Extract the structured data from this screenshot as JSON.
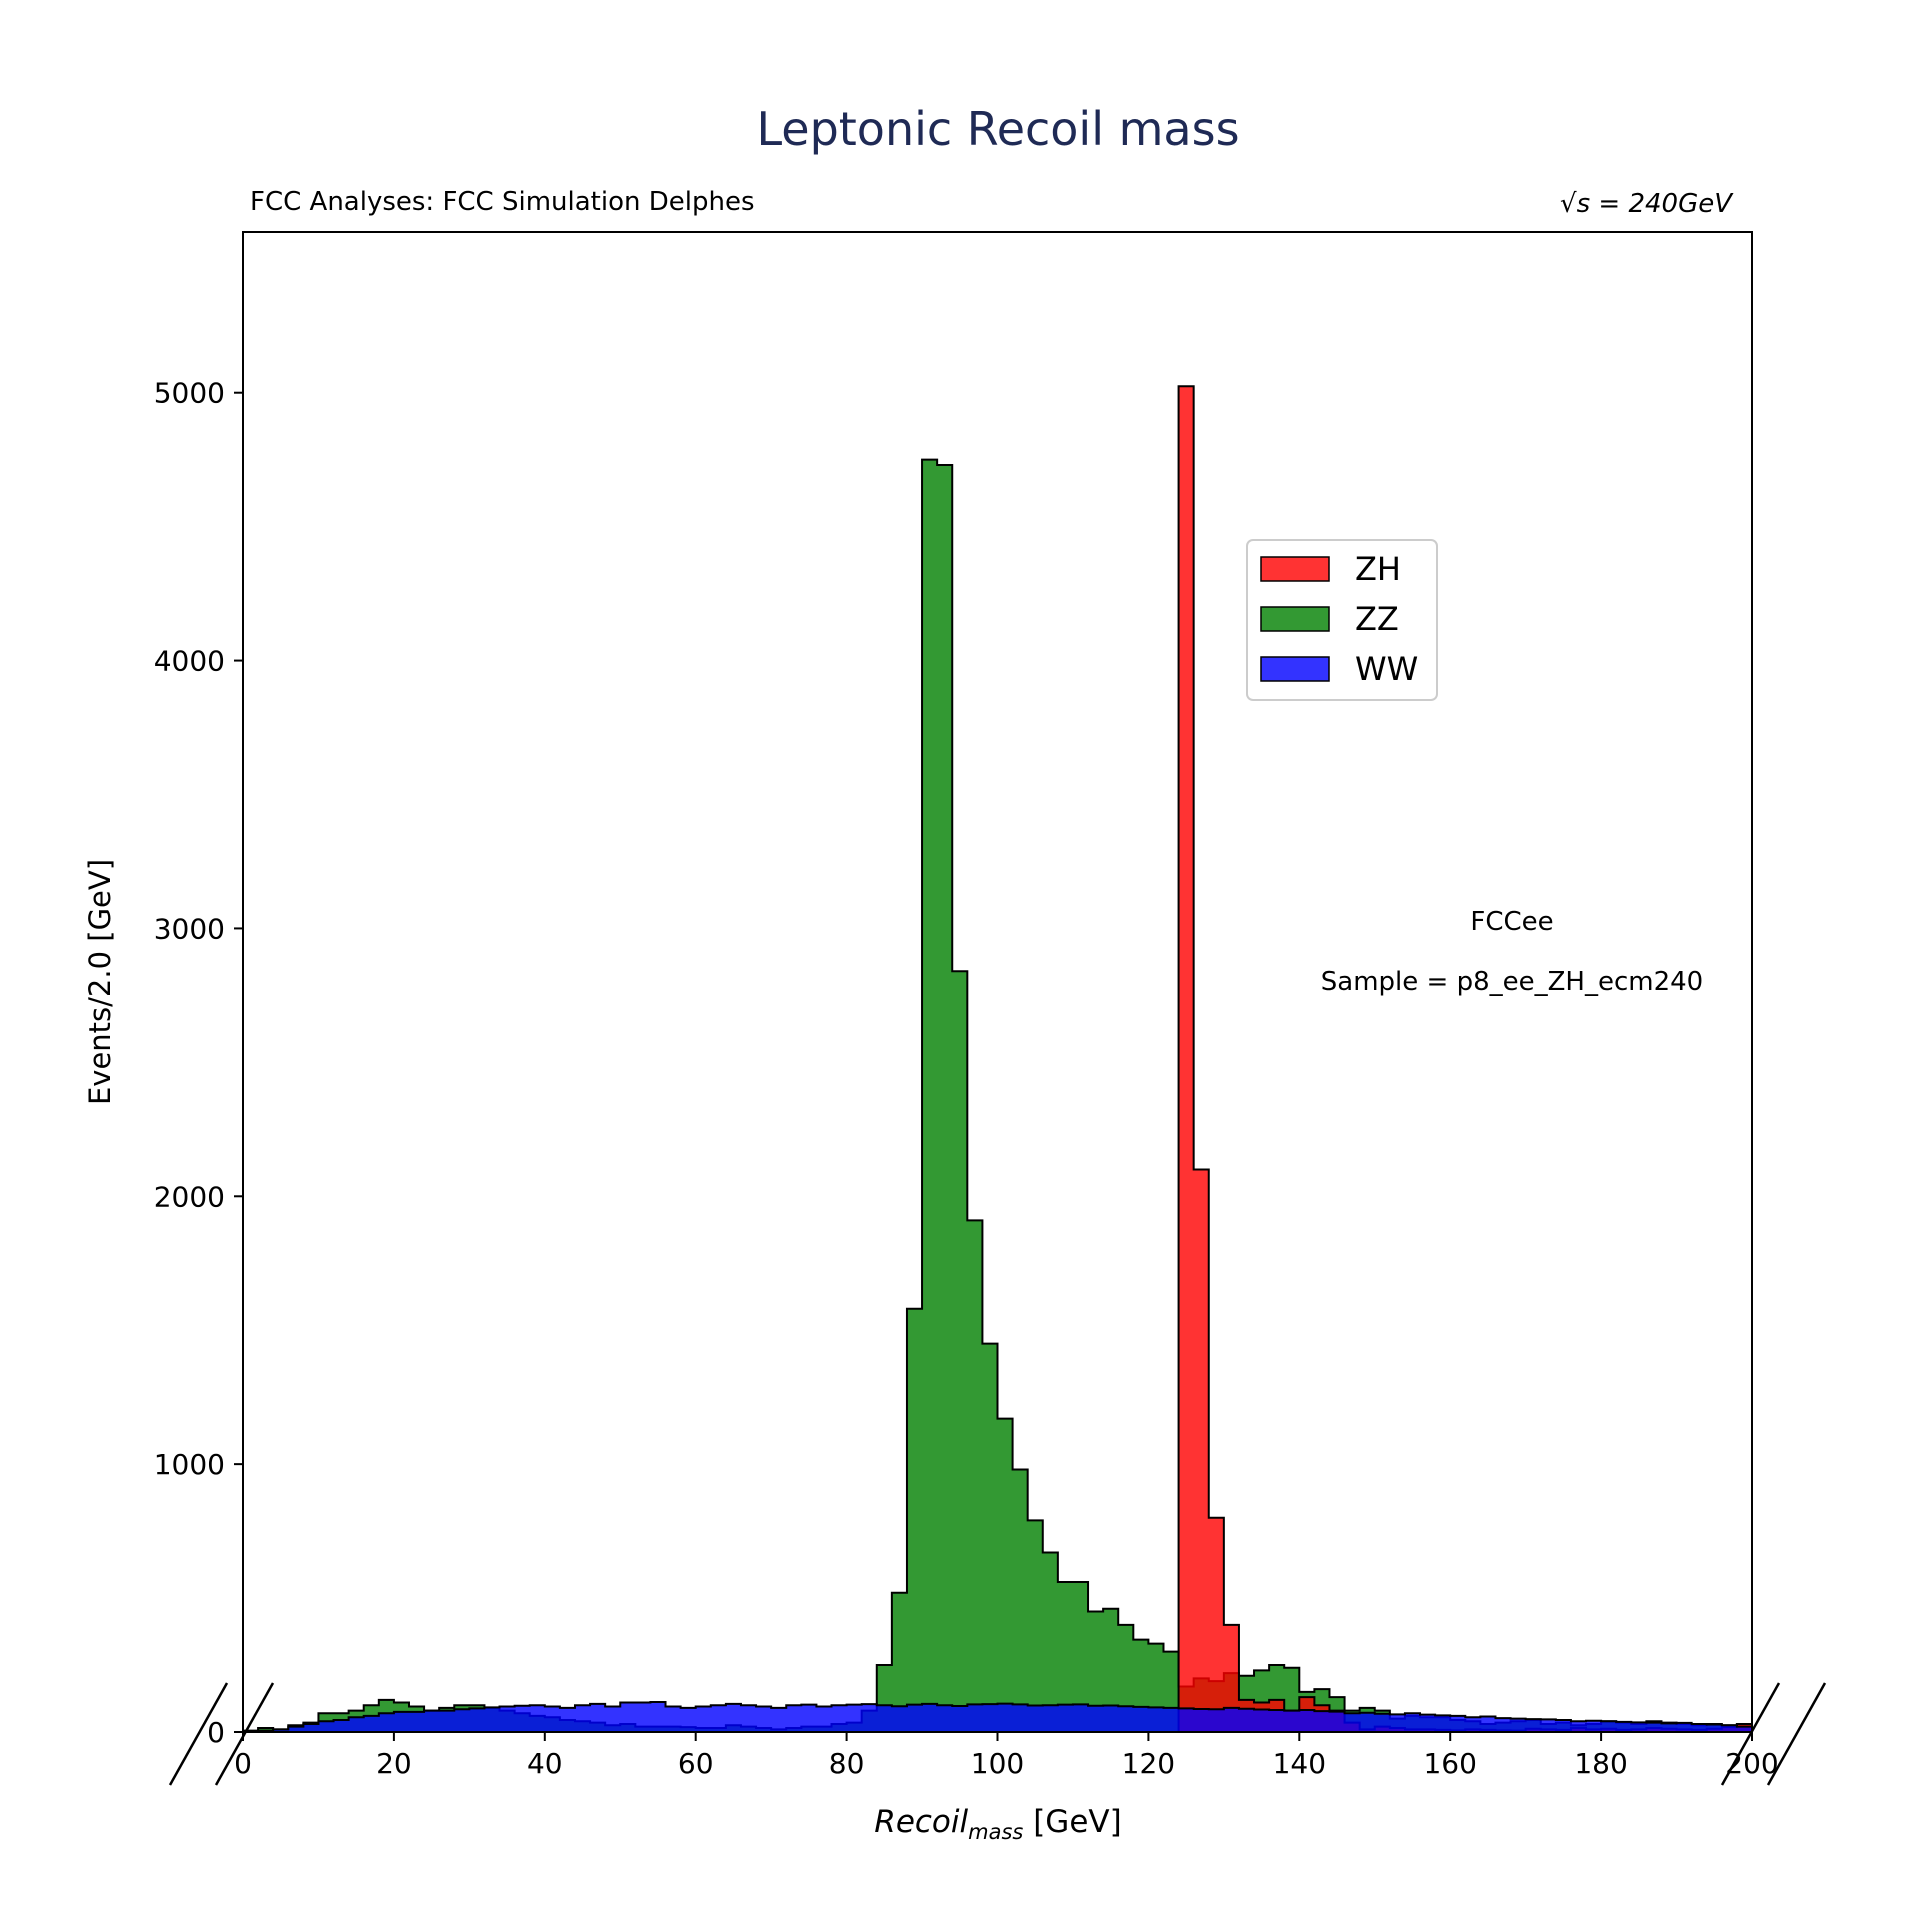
{
  "chart_data": {
    "type": "area",
    "title": "Leptonic Recoil mass",
    "subtitle_left": "FCC Analyses: FCC Simulation Delphes",
    "subtitle_right": "√s = 240GeV",
    "xlabel": "Recoil",
    "xlabel_sub": "mass",
    "xlabel_unit": " [GeV]",
    "ylabel": "Events/2.0 [GeV]",
    "xlim": [
      0,
      200
    ],
    "ylim": [
      0,
      5600
    ],
    "xticks": [
      0,
      20,
      40,
      60,
      80,
      100,
      120,
      140,
      160,
      180,
      200
    ],
    "yticks": [
      0,
      1000,
      2000,
      3000,
      4000,
      5000
    ],
    "bin_width": 2,
    "legend_position": "upper right",
    "annotations": [
      "FCCee",
      "Sample = p8_ee_ZH_ecm240"
    ],
    "colors": {
      "ZH": "#ff0000",
      "ZZ": "#007f00",
      "WW": "#0000ff"
    },
    "series": [
      {
        "name": "WW",
        "color": "#0000ff",
        "values": [
          0,
          5,
          10,
          20,
          30,
          40,
          45,
          55,
          60,
          70,
          75,
          75,
          80,
          80,
          85,
          88,
          92,
          95,
          98,
          100,
          95,
          90,
          100,
          105,
          95,
          110,
          110,
          112,
          95,
          90,
          95,
          100,
          105,
          100,
          95,
          90,
          100,
          102,
          95,
          100,
          102,
          104,
          100,
          96,
          102,
          105,
          100,
          97,
          103,
          104,
          106,
          103,
          99,
          100,
          102,
          103,
          98,
          99,
          96,
          94,
          92,
          90,
          88,
          86,
          85,
          90,
          87,
          84,
          82,
          80,
          82,
          78,
          76,
          70,
          72,
          68,
          66,
          70,
          65,
          62,
          60,
          55,
          58,
          52,
          50,
          48,
          47,
          45,
          40,
          42,
          40,
          38,
          36,
          35,
          32,
          34,
          30,
          28,
          25,
          20
        ]
      },
      {
        "name": "ZZ",
        "color": "#007f00",
        "values": [
          5,
          15,
          10,
          25,
          35,
          70,
          70,
          80,
          100,
          120,
          110,
          95,
          80,
          90,
          100,
          100,
          90,
          80,
          70,
          60,
          55,
          45,
          40,
          35,
          25,
          30,
          20,
          20,
          20,
          18,
          15,
          15,
          25,
          20,
          15,
          10,
          15,
          20,
          20,
          30,
          35,
          80,
          250,
          520,
          1580,
          4750,
          4730,
          2840,
          1910,
          1450,
          1170,
          980,
          790,
          670,
          560,
          560,
          450,
          460,
          400,
          345,
          330,
          300,
          170,
          200,
          190,
          220,
          210,
          230,
          250,
          240,
          150,
          160,
          130,
          80,
          90,
          80,
          50,
          60,
          55,
          55,
          45,
          40,
          30,
          35,
          40,
          45,
          30,
          35,
          25,
          30,
          40,
          35,
          30,
          40,
          35,
          30,
          25,
          30,
          25,
          30
        ]
      },
      {
        "name": "ZH",
        "color": "#ff0000",
        "values": [
          0,
          0,
          0,
          0,
          0,
          0,
          0,
          0,
          0,
          0,
          0,
          0,
          0,
          0,
          0,
          0,
          0,
          0,
          0,
          0,
          0,
          0,
          0,
          0,
          0,
          0,
          0,
          0,
          0,
          0,
          0,
          0,
          0,
          0,
          0,
          0,
          0,
          0,
          0,
          0,
          0,
          0,
          0,
          0,
          0,
          0,
          0,
          0,
          0,
          0,
          0,
          0,
          0,
          0,
          0,
          0,
          0,
          0,
          0,
          0,
          0,
          0,
          5024,
          2100,
          800,
          400,
          120,
          110,
          120,
          80,
          130,
          100,
          80,
          35,
          10,
          20,
          15,
          10,
          10,
          8,
          6,
          10,
          8,
          6,
          5,
          12,
          10,
          8,
          15,
          10,
          12,
          8,
          10,
          15,
          12,
          10,
          8,
          12,
          18,
          30
        ]
      }
    ]
  }
}
